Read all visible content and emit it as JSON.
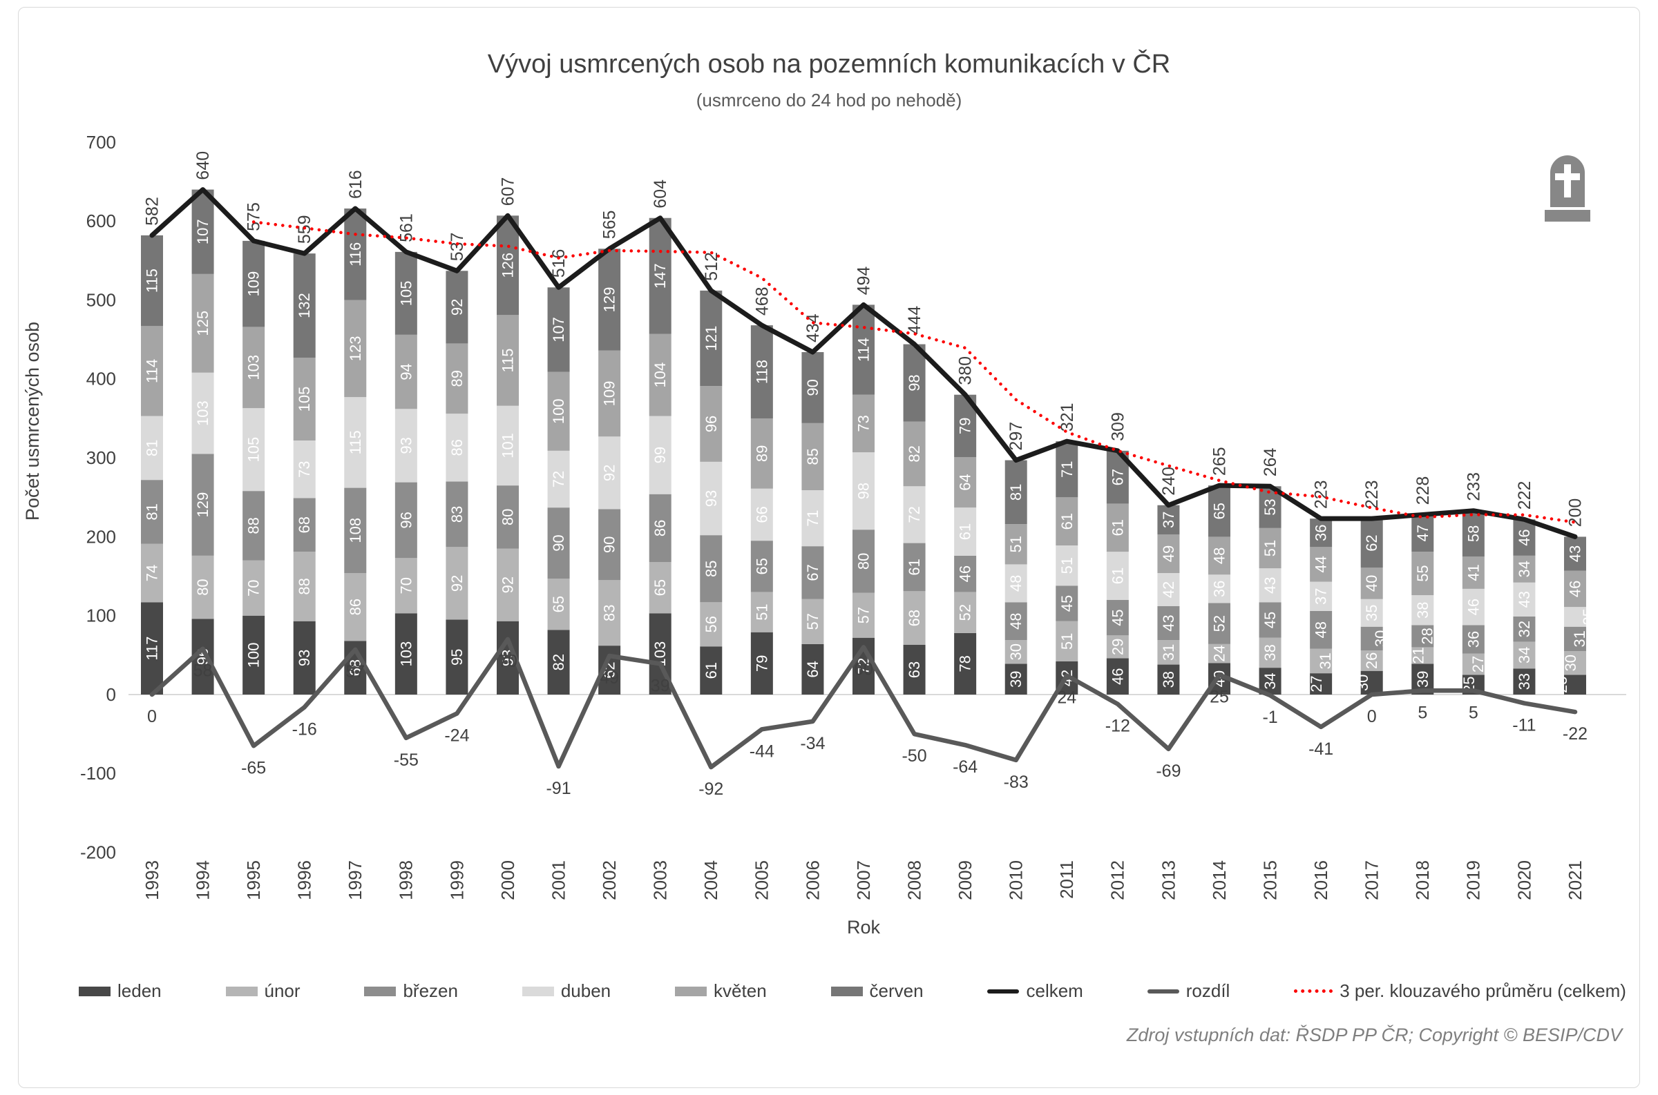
{
  "title": "Vývoj usmrcených osob na pozemních komunikacích v ČR",
  "subtitle": "(usmrceno do 24 hod po nehodě)",
  "source": "Zdroj vstupních dat: ŘSDP PP ČR; Copyright © BESIP/CDV",
  "y_axis_title": "Počet usmrcených osob",
  "x_axis_title": "Rok",
  "icon": "tombstone-icon",
  "chart_data": {
    "type": "bar",
    "stacked": true,
    "grid": false,
    "legend_position": "bottom",
    "ylim": [
      -200,
      700
    ],
    "yticks": [
      700,
      600,
      500,
      400,
      300,
      200,
      100,
      0,
      -100,
      -200
    ],
    "categories": [
      1993,
      1994,
      1995,
      1996,
      1997,
      1998,
      1999,
      2000,
      2001,
      2002,
      2003,
      2004,
      2005,
      2006,
      2007,
      2008,
      2009,
      2010,
      2011,
      2012,
      2013,
      2014,
      2015,
      2016,
      2017,
      2018,
      2019,
      2020,
      2021
    ],
    "series": [
      {
        "name": "leden",
        "color": "#484848",
        "values": [
          117,
          96,
          100,
          93,
          68,
          103,
          95,
          93,
          82,
          62,
          103,
          61,
          79,
          64,
          72,
          63,
          78,
          39,
          42,
          46,
          38,
          40,
          34,
          27,
          30,
          39,
          25,
          33,
          25
        ]
      },
      {
        "name": "únor",
        "color": "#b5b5b5",
        "values": [
          74,
          80,
          70,
          88,
          86,
          70,
          92,
          92,
          65,
          83,
          65,
          56,
          51,
          57,
          57,
          68,
          52,
          30,
          51,
          29,
          31,
          24,
          38,
          31,
          26,
          21,
          27,
          34,
          30
        ]
      },
      {
        "name": "březen",
        "color": "#8d8d8d",
        "values": [
          81,
          129,
          88,
          68,
          108,
          96,
          83,
          80,
          90,
          90,
          86,
          85,
          65,
          67,
          80,
          61,
          46,
          48,
          45,
          45,
          43,
          52,
          45,
          48,
          30,
          28,
          36,
          32,
          31
        ]
      },
      {
        "name": "duben",
        "color": "#dadada",
        "values": [
          81,
          103,
          105,
          73,
          115,
          93,
          86,
          101,
          72,
          92,
          99,
          93,
          66,
          71,
          98,
          72,
          61,
          48,
          51,
          61,
          42,
          36,
          43,
          37,
          35,
          38,
          46,
          43,
          25
        ]
      },
      {
        "name": "květen",
        "color": "#a5a5a5",
        "values": [
          114,
          125,
          103,
          105,
          123,
          94,
          89,
          115,
          100,
          109,
          104,
          96,
          89,
          85,
          73,
          82,
          64,
          51,
          61,
          61,
          49,
          48,
          51,
          44,
          40,
          55,
          41,
          34,
          46
        ]
      },
      {
        "name": "červen",
        "color": "#767676",
        "values": [
          115,
          107,
          109,
          132,
          116,
          105,
          92,
          126,
          107,
          129,
          147,
          121,
          118,
          90,
          114,
          98,
          79,
          81,
          71,
          67,
          37,
          65,
          53,
          36,
          62,
          47,
          58,
          46,
          43
        ]
      }
    ],
    "line_series": [
      {
        "name": "celkem",
        "color": "#1c1c1c",
        "values": [
          582,
          640,
          575,
          559,
          616,
          561,
          537,
          607,
          516,
          565,
          604,
          512,
          468,
          434,
          494,
          444,
          380,
          297,
          321,
          309,
          240,
          265,
          264,
          223,
          223,
          228,
          233,
          222,
          200
        ]
      },
      {
        "name": "rozdíl",
        "color": "#595959",
        "values": [
          0,
          58,
          -65,
          -16,
          57,
          -55,
          -24,
          70,
          -91,
          49,
          39,
          -92,
          -44,
          -34,
          60,
          -50,
          -64,
          -83,
          24,
          -12,
          -69,
          25,
          -1,
          -41,
          0,
          5,
          5,
          -11,
          -22
        ]
      }
    ],
    "trendline": {
      "name": "3 per. klouzavého průměru (celkem)",
      "color": "#fb0000",
      "period": 3,
      "values": [
        null,
        null,
        599,
        591.3,
        583.3,
        578.7,
        571.3,
        568.3,
        553.3,
        562.7,
        561.7,
        560.3,
        528,
        471.3,
        465.3,
        457.3,
        439.3,
        373.7,
        332.7,
        309,
        290,
        271.3,
        256.3,
        250.7,
        236.7,
        224.7,
        228,
        227.7,
        218.3
      ]
    }
  }
}
